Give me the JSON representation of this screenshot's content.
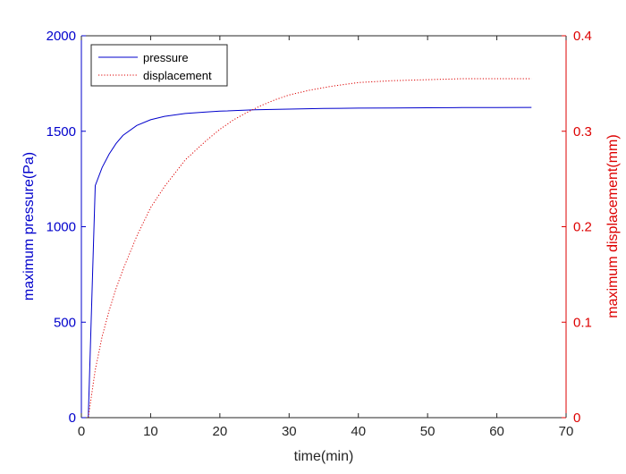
{
  "chart_data": {
    "type": "line",
    "xlabel": "time(min)",
    "ylabel_left": "maximum pressure(Pa)",
    "ylabel_right": "maximum displacement(mm)",
    "xlim": [
      0,
      70
    ],
    "ylim_left": [
      0,
      2000
    ],
    "ylim_right": [
      0,
      0.4
    ],
    "xticks": [
      "0",
      "10",
      "20",
      "30",
      "40",
      "50",
      "60",
      "70"
    ],
    "yticks_left": [
      "0",
      "500",
      "1000",
      "1500",
      "2000"
    ],
    "yticks_right": [
      "0",
      "0.1",
      "0.2",
      "0.3",
      "0.4"
    ],
    "grid": false,
    "legend_position": "top-left",
    "left_axis_color": "#0000cc",
    "right_axis_color": "#dd0000",
    "series": [
      {
        "name": "pressure",
        "axis": "left",
        "color": "#0000cc",
        "style": "solid",
        "x": [
          1,
          2,
          3,
          4,
          5,
          6,
          8,
          10,
          12,
          15,
          18,
          20,
          25,
          30,
          35,
          40,
          45,
          50,
          55,
          60,
          65
        ],
        "y": [
          0,
          1215,
          1310,
          1380,
          1435,
          1478,
          1530,
          1560,
          1578,
          1593,
          1601,
          1605,
          1612,
          1616,
          1619,
          1621,
          1622,
          1623,
          1624,
          1624,
          1625
        ]
      },
      {
        "name": "displacement",
        "axis": "right",
        "color": "#dd0000",
        "style": "dotted",
        "x": [
          1,
          2,
          3,
          4,
          5,
          6,
          8,
          10,
          12,
          15,
          18,
          20,
          22,
          24,
          26,
          28,
          30,
          33,
          36,
          40,
          45,
          50,
          55,
          60,
          65
        ],
        "y": [
          0,
          0.05,
          0.085,
          0.112,
          0.135,
          0.155,
          0.19,
          0.22,
          0.242,
          0.27,
          0.29,
          0.302,
          0.312,
          0.32,
          0.327,
          0.333,
          0.338,
          0.343,
          0.347,
          0.351,
          0.353,
          0.354,
          0.355,
          0.355,
          0.355
        ]
      }
    ]
  }
}
